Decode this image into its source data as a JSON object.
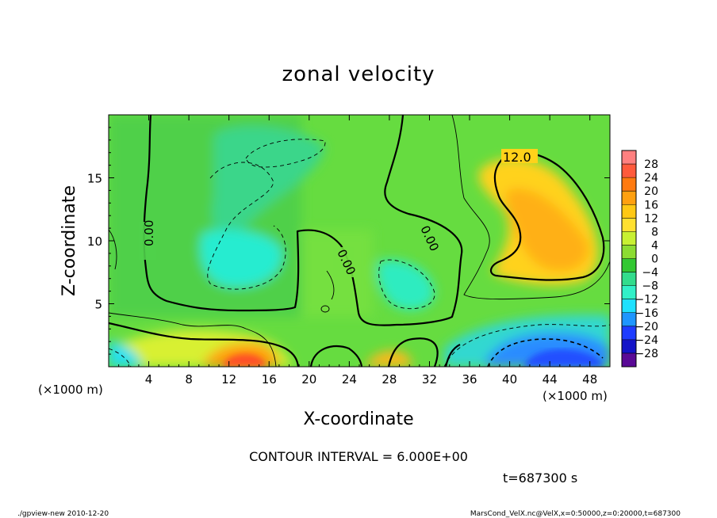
{
  "chart_data": {
    "type": "heatmap",
    "title": "zonal velocity",
    "xlabel": "X-coordinate",
    "ylabel": "Z-coordinate",
    "x_unit": "(×1000 m)",
    "z_unit": "(×1000 m)",
    "xlim": [
      0,
      50
    ],
    "ylim": [
      0,
      20
    ],
    "x_ticks": [
      "4",
      "8",
      "12",
      "16",
      "20",
      "24",
      "28",
      "32",
      "36",
      "40",
      "44",
      "48"
    ],
    "y_ticks": [
      "5",
      "10",
      "15"
    ],
    "colorbar": {
      "labels": [
        "28",
        "24",
        "20",
        "16",
        "12",
        "8",
        "4",
        "0",
        "−4",
        "−8",
        "−12",
        "−16",
        "−20",
        "−24",
        "−28"
      ],
      "colors": [
        "#ff8080",
        "#ff5a3c",
        "#ff7a10",
        "#ffa010",
        "#ffc814",
        "#ffe030",
        "#c8f032",
        "#8cdc32",
        "#32c832",
        "#32dc8c",
        "#32f0c8",
        "#1ee1ff",
        "#1e96ff",
        "#1e3cff",
        "#1414c8",
        "#5a0a96"
      ]
    },
    "contour_labels": [
      "0.00",
      "0.00",
      "0.00",
      "12.0"
    ],
    "contour_interval": "CONTOUR INTERVAL = 6.000E+00",
    "time": "t=687300 s"
  },
  "footer": {
    "left": "./gpview-new  2010-12-20",
    "right": "MarsCond_VelX.nc@VelX,x=0:50000,z=0:20000,t=687300"
  }
}
